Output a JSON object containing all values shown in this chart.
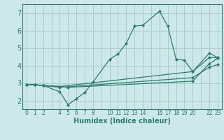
{
  "xlabel": "Humidex (Indice chaleur)",
  "bg_color": "#cce8e8",
  "grid_color": "#aacccc",
  "line_color": "#2e7d6e",
  "ylim": [
    1.5,
    7.5
  ],
  "yticks": [
    2,
    3,
    4,
    5,
    6,
    7
  ],
  "xtick_labels": [
    "0",
    "1",
    "2",
    "",
    "4",
    "5",
    "6",
    "7",
    "8",
    "",
    "10",
    "11",
    "12",
    "13",
    "14",
    "",
    "16",
    "17",
    "18",
    "19",
    "20",
    "",
    "22",
    "23"
  ],
  "n_xticks": 24,
  "lines": [
    {
      "xi": [
        0,
        1,
        2,
        4,
        5,
        6,
        7,
        8,
        10,
        11,
        12,
        13,
        14,
        16,
        17,
        18,
        19,
        20,
        22,
        23
      ],
      "y": [
        2.9,
        2.9,
        2.85,
        2.5,
        1.75,
        2.1,
        2.45,
        3.05,
        4.35,
        4.65,
        5.25,
        6.25,
        6.3,
        7.1,
        6.25,
        4.35,
        4.3,
        3.65,
        4.7,
        4.45
      ]
    },
    {
      "xi": [
        0,
        1,
        2,
        4,
        20,
        22,
        23
      ],
      "y": [
        2.9,
        2.9,
        2.85,
        2.8,
        3.65,
        4.45,
        4.45
      ]
    },
    {
      "xi": [
        0,
        1,
        2,
        4,
        20,
        22,
        23
      ],
      "y": [
        2.9,
        2.9,
        2.85,
        2.75,
        3.3,
        3.9,
        4.05
      ]
    },
    {
      "xi": [
        0,
        1,
        2,
        4,
        5,
        20,
        22,
        23
      ],
      "y": [
        2.9,
        2.9,
        2.85,
        2.8,
        2.75,
        3.1,
        4.1,
        4.4
      ]
    }
  ]
}
